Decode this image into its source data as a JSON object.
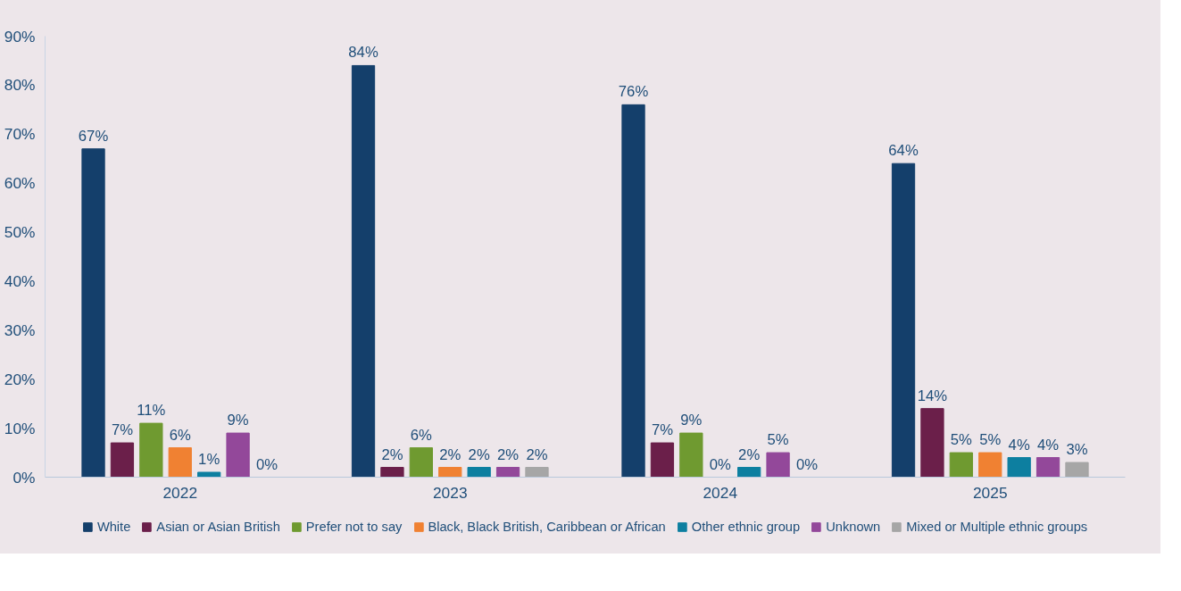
{
  "chart_data": {
    "type": "bar",
    "categories": [
      "2022",
      "2023",
      "2024",
      "2025"
    ],
    "series": [
      {
        "name": "White",
        "color": "#143f6b",
        "values": [
          67,
          84,
          76,
          64
        ],
        "value_labels": [
          "67%",
          "84%",
          "76%",
          "64%"
        ]
      },
      {
        "name": "Asian or Asian British",
        "color": "#6b1f4a",
        "values": [
          7,
          2,
          7,
          14
        ],
        "value_labels": [
          "7%",
          "2%",
          "7%",
          "14%"
        ]
      },
      {
        "name": "Prefer not to say",
        "color": "#6f9a30",
        "values": [
          11,
          6,
          9,
          5
        ],
        "value_labels": [
          "11%",
          "6%",
          "9%",
          "5%"
        ]
      },
      {
        "name": "Black, Black British, Caribbean or African",
        "color": "#f08132",
        "values": [
          6,
          2,
          0,
          5
        ],
        "value_labels": [
          "6%",
          "2%",
          "0%",
          "5%"
        ]
      },
      {
        "name": "Other ethnic group",
        "color": "#0d7fa0",
        "values": [
          1,
          2,
          2,
          4
        ],
        "value_labels": [
          "1%",
          "2%",
          "2%",
          "4%"
        ]
      },
      {
        "name": "Unknown",
        "color": "#93489a",
        "values": [
          9,
          2,
          5,
          4
        ],
        "value_labels": [
          "9%",
          "2%",
          "5%",
          "4%"
        ]
      },
      {
        "name": "Mixed or Multiple ethnic groups",
        "color": "#a6a6a6",
        "values": [
          0,
          2,
          0,
          3
        ],
        "value_labels": [
          "0%",
          "2%",
          "0%",
          "3%"
        ]
      }
    ],
    "ylim": [
      0,
      90
    ],
    "yticks": [
      {
        "value": 0,
        "label": "0%"
      },
      {
        "value": 10,
        "label": "10%"
      },
      {
        "value": 20,
        "label": "20%"
      },
      {
        "value": 30,
        "label": "30%"
      },
      {
        "value": 40,
        "label": "40%"
      },
      {
        "value": 50,
        "label": "50%"
      },
      {
        "value": 60,
        "label": "60%"
      },
      {
        "value": 70,
        "label": "70%"
      },
      {
        "value": 80,
        "label": "80%"
      },
      {
        "value": 90,
        "label": "90%"
      }
    ],
    "grid": false,
    "legend": "bottom"
  }
}
